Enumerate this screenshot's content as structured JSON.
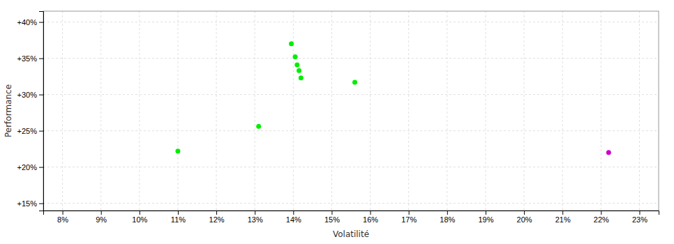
{
  "chart_data": {
    "type": "scatter",
    "xlabel": "Volatilité",
    "ylabel": "Performance",
    "xlim": [
      0.075,
      0.235
    ],
    "ylim": [
      0.14,
      0.415
    ],
    "xticks": [
      {
        "value": 0.08,
        "label": "8%"
      },
      {
        "value": 0.09,
        "label": "9%"
      },
      {
        "value": 0.1,
        "label": "10%"
      },
      {
        "value": 0.11,
        "label": "11%"
      },
      {
        "value": 0.12,
        "label": "12%"
      },
      {
        "value": 0.13,
        "label": "13%"
      },
      {
        "value": 0.14,
        "label": "14%"
      },
      {
        "value": 0.15,
        "label": "15%"
      },
      {
        "value": 0.16,
        "label": "16%"
      },
      {
        "value": 0.17,
        "label": "17%"
      },
      {
        "value": 0.18,
        "label": "18%"
      },
      {
        "value": 0.19,
        "label": "19%"
      },
      {
        "value": 0.2,
        "label": "20%"
      },
      {
        "value": 0.21,
        "label": "21%"
      },
      {
        "value": 0.22,
        "label": "22%"
      },
      {
        "value": 0.23,
        "label": "23%"
      }
    ],
    "yticks": [
      {
        "value": 0.15,
        "label": "+15%"
      },
      {
        "value": 0.2,
        "label": "+20%"
      },
      {
        "value": 0.25,
        "label": "+25%"
      },
      {
        "value": 0.3,
        "label": "+30%"
      },
      {
        "value": 0.35,
        "label": "+35%"
      },
      {
        "value": 0.4,
        "label": "+40%"
      }
    ],
    "grid": true,
    "series": [
      {
        "color": "#00ee00",
        "x": [
          0.1395,
          0.1405,
          0.141,
          0.1415,
          0.142,
          0.131,
          0.11,
          0.156
        ],
        "values": [
          0.37,
          0.352,
          0.341,
          0.333,
          0.323,
          0.256,
          0.222,
          0.317
        ]
      },
      {
        "color": "#cc00cc",
        "x": [
          0.222
        ],
        "values": [
          0.22
        ]
      }
    ]
  }
}
